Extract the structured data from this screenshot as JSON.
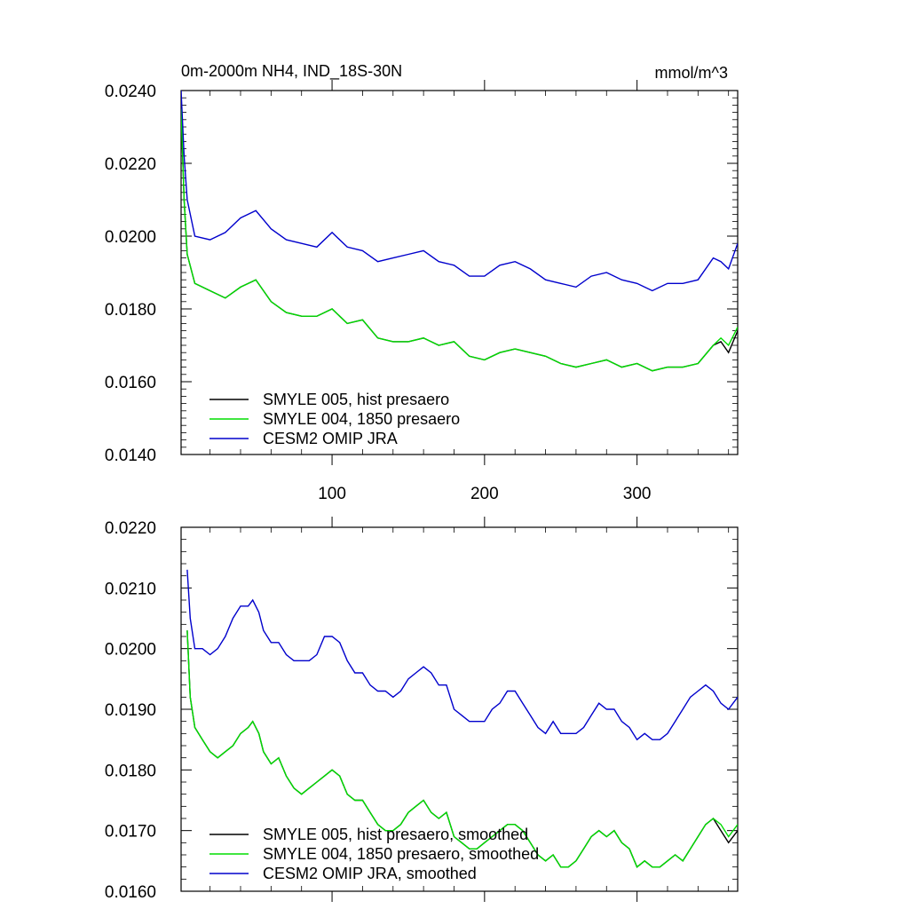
{
  "chart_data": [
    {
      "type": "line",
      "title": "0m-2000m NH4, IND_18S-30N",
      "units": "mmol/m^3",
      "xlim": [
        1,
        366
      ],
      "ylim": [
        0.014,
        0.024
      ],
      "xticks": [
        100,
        200,
        300
      ],
      "xtick_labels": [
        "100",
        "200",
        "300"
      ],
      "yticks": [
        0.014,
        0.016,
        0.018,
        0.02,
        0.022,
        0.024
      ],
      "ytick_labels": [
        "0.0140",
        "0.0160",
        "0.0180",
        "0.0200",
        "0.0220",
        "0.0240"
      ],
      "legend_position": "bottom-left",
      "series": [
        {
          "name": "SMYLE 005, hist presaero",
          "color": "#000000",
          "x": [
            1,
            3,
            5,
            10,
            20,
            30,
            40,
            50,
            60,
            70,
            80,
            90,
            100,
            110,
            120,
            130,
            140,
            150,
            160,
            170,
            180,
            190,
            200,
            210,
            220,
            230,
            240,
            250,
            260,
            270,
            280,
            290,
            300,
            310,
            320,
            330,
            340,
            350,
            355,
            360,
            366
          ],
          "y": [
            0.0235,
            0.021,
            0.0195,
            0.0187,
            0.0185,
            0.0183,
            0.0186,
            0.0188,
            0.0182,
            0.0179,
            0.0178,
            0.0178,
            0.018,
            0.0176,
            0.0177,
            0.0172,
            0.0171,
            0.0171,
            0.0172,
            0.017,
            0.0171,
            0.0167,
            0.0166,
            0.0168,
            0.0169,
            0.0168,
            0.0167,
            0.0165,
            0.0164,
            0.0165,
            0.0166,
            0.0164,
            0.0165,
            0.0163,
            0.0164,
            0.0164,
            0.0165,
            0.017,
            0.0171,
            0.0168,
            0.0174
          ]
        },
        {
          "name": "SMYLE 004, 1850 presaero",
          "color": "#00dd00",
          "x": [
            1,
            3,
            5,
            10,
            20,
            30,
            40,
            50,
            60,
            70,
            80,
            90,
            100,
            110,
            120,
            130,
            140,
            150,
            160,
            170,
            180,
            190,
            200,
            210,
            220,
            230,
            240,
            250,
            260,
            270,
            280,
            290,
            300,
            310,
            320,
            330,
            340,
            350,
            355,
            360,
            366
          ],
          "y": [
            0.0235,
            0.021,
            0.0195,
            0.0187,
            0.0185,
            0.0183,
            0.0186,
            0.0188,
            0.0182,
            0.0179,
            0.0178,
            0.0178,
            0.018,
            0.0176,
            0.0177,
            0.0172,
            0.0171,
            0.0171,
            0.0172,
            0.017,
            0.0171,
            0.0167,
            0.0166,
            0.0168,
            0.0169,
            0.0168,
            0.0167,
            0.0165,
            0.0164,
            0.0165,
            0.0166,
            0.0164,
            0.0165,
            0.0163,
            0.0164,
            0.0164,
            0.0165,
            0.017,
            0.0172,
            0.017,
            0.0175
          ]
        },
        {
          "name": "CESM2 OMIP JRA",
          "color": "#0000cc",
          "x": [
            1,
            3,
            5,
            10,
            20,
            30,
            40,
            50,
            60,
            70,
            80,
            90,
            100,
            110,
            120,
            130,
            140,
            150,
            160,
            170,
            180,
            190,
            200,
            210,
            220,
            230,
            240,
            250,
            260,
            270,
            280,
            290,
            300,
            310,
            320,
            330,
            340,
            350,
            355,
            360,
            366
          ],
          "y": [
            0.024,
            0.0222,
            0.021,
            0.02,
            0.0199,
            0.0201,
            0.0205,
            0.0207,
            0.0202,
            0.0199,
            0.0198,
            0.0197,
            0.0201,
            0.0197,
            0.0196,
            0.0193,
            0.0194,
            0.0195,
            0.0196,
            0.0193,
            0.0192,
            0.0189,
            0.0189,
            0.0192,
            0.0193,
            0.0191,
            0.0188,
            0.0187,
            0.0186,
            0.0189,
            0.019,
            0.0188,
            0.0187,
            0.0185,
            0.0187,
            0.0187,
            0.0188,
            0.0194,
            0.0193,
            0.0191,
            0.0198
          ]
        }
      ]
    },
    {
      "type": "line",
      "xlim": [
        1,
        366
      ],
      "ylim": [
        0.016,
        0.022
      ],
      "xticks": [
        100,
        200,
        300
      ],
      "yticks": [
        0.016,
        0.017,
        0.018,
        0.019,
        0.02,
        0.021,
        0.022
      ],
      "ytick_labels": [
        "0.0160",
        "0.0170",
        "0.0180",
        "0.0190",
        "0.0200",
        "0.0210",
        "0.0220"
      ],
      "legend_position": "bottom-left",
      "series": [
        {
          "name": "SMYLE 005, hist presaero, smoothed",
          "color": "#000000",
          "x": [
            5,
            7,
            10,
            15,
            20,
            25,
            30,
            35,
            40,
            45,
            48,
            52,
            55,
            60,
            65,
            70,
            75,
            80,
            85,
            90,
            95,
            100,
            105,
            110,
            115,
            120,
            125,
            130,
            135,
            140,
            145,
            150,
            155,
            160,
            165,
            170,
            175,
            180,
            185,
            190,
            195,
            200,
            205,
            210,
            215,
            220,
            225,
            230,
            235,
            240,
            245,
            250,
            255,
            260,
            265,
            270,
            275,
            280,
            285,
            290,
            295,
            300,
            305,
            310,
            315,
            320,
            325,
            330,
            335,
            340,
            345,
            350,
            355,
            360,
            366
          ],
          "y": [
            0.0203,
            0.0192,
            0.0187,
            0.0185,
            0.0183,
            0.0182,
            0.0183,
            0.0184,
            0.0186,
            0.0187,
            0.0188,
            0.0186,
            0.0183,
            0.0181,
            0.0182,
            0.0179,
            0.0177,
            0.0176,
            0.0177,
            0.0178,
            0.0179,
            0.018,
            0.0179,
            0.0176,
            0.0175,
            0.0175,
            0.0173,
            0.0171,
            0.017,
            0.017,
            0.0171,
            0.0173,
            0.0174,
            0.0175,
            0.0173,
            0.0172,
            0.0173,
            0.0169,
            0.0168,
            0.0167,
            0.0167,
            0.0168,
            0.0169,
            0.017,
            0.0171,
            0.0171,
            0.017,
            0.0168,
            0.0166,
            0.0165,
            0.0166,
            0.0164,
            0.0164,
            0.0165,
            0.0167,
            0.0169,
            0.017,
            0.0169,
            0.017,
            0.0168,
            0.0167,
            0.0164,
            0.0165,
            0.0164,
            0.0164,
            0.0165,
            0.0166,
            0.0165,
            0.0167,
            0.0169,
            0.0171,
            0.0172,
            0.017,
            0.0168,
            0.017
          ]
        },
        {
          "name": "SMYLE 004, 1850 presaero, smoothed",
          "color": "#00dd00",
          "x": [
            5,
            7,
            10,
            15,
            20,
            25,
            30,
            35,
            40,
            45,
            48,
            52,
            55,
            60,
            65,
            70,
            75,
            80,
            85,
            90,
            95,
            100,
            105,
            110,
            115,
            120,
            125,
            130,
            135,
            140,
            145,
            150,
            155,
            160,
            165,
            170,
            175,
            180,
            185,
            190,
            195,
            200,
            205,
            210,
            215,
            220,
            225,
            230,
            235,
            240,
            245,
            250,
            255,
            260,
            265,
            270,
            275,
            280,
            285,
            290,
            295,
            300,
            305,
            310,
            315,
            320,
            325,
            330,
            335,
            340,
            345,
            350,
            355,
            360,
            366
          ],
          "y": [
            0.0203,
            0.0192,
            0.0187,
            0.0185,
            0.0183,
            0.0182,
            0.0183,
            0.0184,
            0.0186,
            0.0187,
            0.0188,
            0.0186,
            0.0183,
            0.0181,
            0.0182,
            0.0179,
            0.0177,
            0.0176,
            0.0177,
            0.0178,
            0.0179,
            0.018,
            0.0179,
            0.0176,
            0.0175,
            0.0175,
            0.0173,
            0.0171,
            0.017,
            0.017,
            0.0171,
            0.0173,
            0.0174,
            0.0175,
            0.0173,
            0.0172,
            0.0173,
            0.0169,
            0.0168,
            0.0167,
            0.0167,
            0.0168,
            0.0169,
            0.017,
            0.0171,
            0.0171,
            0.017,
            0.0168,
            0.0166,
            0.0165,
            0.0166,
            0.0164,
            0.0164,
            0.0165,
            0.0167,
            0.0169,
            0.017,
            0.0169,
            0.017,
            0.0168,
            0.0167,
            0.0164,
            0.0165,
            0.0164,
            0.0164,
            0.0165,
            0.0166,
            0.0165,
            0.0167,
            0.0169,
            0.0171,
            0.0172,
            0.0171,
            0.0169,
            0.0171
          ]
        },
        {
          "name": "CESM2 OMIP JRA, smoothed",
          "color": "#0000cc",
          "x": [
            5,
            7,
            10,
            15,
            20,
            25,
            30,
            35,
            40,
            45,
            48,
            52,
            55,
            60,
            65,
            70,
            75,
            80,
            85,
            90,
            95,
            100,
            105,
            110,
            115,
            120,
            125,
            130,
            135,
            140,
            145,
            150,
            155,
            160,
            165,
            170,
            175,
            180,
            185,
            190,
            195,
            200,
            205,
            210,
            215,
            220,
            225,
            230,
            235,
            240,
            245,
            250,
            255,
            260,
            265,
            270,
            275,
            280,
            285,
            290,
            295,
            300,
            305,
            310,
            315,
            320,
            325,
            330,
            335,
            340,
            345,
            350,
            355,
            360,
            366
          ],
          "y": [
            0.0213,
            0.0205,
            0.02,
            0.02,
            0.0199,
            0.02,
            0.0202,
            0.0205,
            0.0207,
            0.0207,
            0.0208,
            0.0206,
            0.0203,
            0.0201,
            0.0201,
            0.0199,
            0.0198,
            0.0198,
            0.0198,
            0.0199,
            0.0202,
            0.0202,
            0.0201,
            0.0198,
            0.0196,
            0.0196,
            0.0194,
            0.0193,
            0.0193,
            0.0192,
            0.0193,
            0.0195,
            0.0196,
            0.0197,
            0.0196,
            0.0194,
            0.0194,
            0.019,
            0.0189,
            0.0188,
            0.0188,
            0.0188,
            0.019,
            0.0191,
            0.0193,
            0.0193,
            0.0191,
            0.0189,
            0.0187,
            0.0186,
            0.0188,
            0.0186,
            0.0186,
            0.0186,
            0.0187,
            0.0189,
            0.0191,
            0.019,
            0.019,
            0.0188,
            0.0187,
            0.0185,
            0.0186,
            0.0185,
            0.0185,
            0.0186,
            0.0188,
            0.019,
            0.0192,
            0.0193,
            0.0194,
            0.0193,
            0.0191,
            0.019,
            0.0192
          ]
        }
      ]
    }
  ]
}
